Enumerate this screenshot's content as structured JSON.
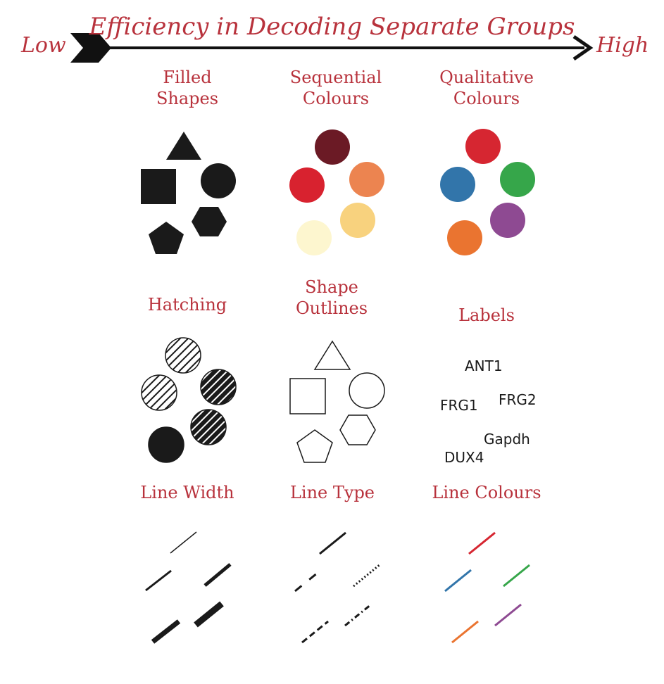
{
  "header": {
    "title": "Efficiency in Decoding Separate Groups",
    "low_label": "Low",
    "high_label": "High"
  },
  "panels": {
    "filled_shapes": [
      "Filled",
      "Shapes"
    ],
    "sequential_colours": [
      "Sequential",
      "Colours"
    ],
    "qualitative_colours": [
      "Qualitative",
      "Colours"
    ],
    "hatching": "Hatching",
    "shape_outlines": [
      "Shape",
      "Outlines"
    ],
    "labels": "Labels",
    "line_width": "Line Width",
    "line_type": "Line Type",
    "line_colours": "Line Colours"
  },
  "gene_labels": [
    "ANT1",
    "FRG1",
    "FRG2",
    "Gapdh",
    "DUX4"
  ],
  "colors": {
    "title_red": "#b8323c",
    "sequential": [
      "#6b1a25",
      "#d8222f",
      "#ec8450",
      "#f8d27e",
      "#fdf6cf"
    ],
    "qualitative": [
      "#d62631",
      "#3275aa",
      "#36a64a",
      "#8e4a92",
      "#ea7430"
    ],
    "line_colours": [
      "#d62631",
      "#3275aa",
      "#36a64a",
      "#ea7430",
      "#8e4a92"
    ]
  }
}
